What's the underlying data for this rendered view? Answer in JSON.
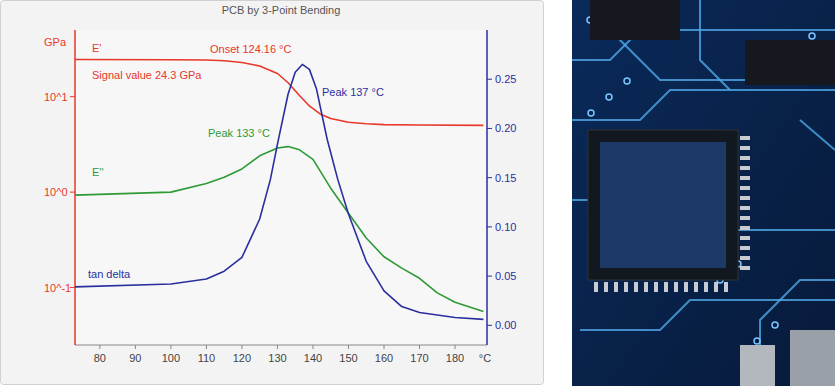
{
  "chart_data": {
    "type": "line",
    "title": "PCB by 3-Point Bending",
    "x_label": "°C",
    "y_label": "GPa",
    "log": "y",
    "grid": false,
    "xlim": [
      73,
      189
    ],
    "xticks": [
      80,
      90,
      100,
      110,
      120,
      130,
      140,
      150,
      160,
      170,
      180
    ],
    "ylim": [
      0.025,
      50
    ],
    "yticks": [
      {
        "value": 0.1,
        "label": "10^-1"
      },
      {
        "value": 1,
        "label": "10^0"
      },
      {
        "value": 10,
        "label": "10^1"
      }
    ],
    "y2lim": [
      -0.02,
      0.3
    ],
    "y2ticks": [
      {
        "value": 0,
        "label": "0.00"
      },
      {
        "value": 0.05,
        "label": "0.05"
      },
      {
        "value": 0.1,
        "label": "0.10"
      },
      {
        "value": 0.15,
        "label": "0.15"
      },
      {
        "value": 0.2,
        "label": "0.20"
      },
      {
        "value": 0.25,
        "label": "0.25"
      }
    ],
    "series": [
      {
        "name": "E'",
        "color": "#e8382a",
        "x": [
          73,
          100,
          110,
          115,
          120,
          125,
          130,
          133,
          136,
          139,
          142,
          145,
          150,
          155,
          160,
          170,
          188
        ],
        "values": [
          24.5,
          24.4,
          24.2,
          23.8,
          22.8,
          21,
          17.5,
          14,
          10.5,
          8,
          6.6,
          5.9,
          5.4,
          5.2,
          5.1,
          5.05,
          5.0
        ]
      },
      {
        "name": "E''",
        "color": "#2e9a36",
        "x": [
          73,
          100,
          110,
          115,
          120,
          125,
          130,
          133,
          136,
          140,
          145,
          150,
          155,
          160,
          165,
          170,
          175,
          180,
          188
        ],
        "values": [
          0.93,
          1.0,
          1.23,
          1.43,
          1.75,
          2.4,
          2.9,
          3.0,
          2.8,
          2.2,
          1.1,
          0.6,
          0.33,
          0.21,
          0.16,
          0.125,
          0.088,
          0.07,
          0.056
        ]
      },
      {
        "name": "tan delta",
        "color": "#2b2f9e",
        "axis": "y2",
        "x": [
          73,
          100,
          110,
          115,
          120,
          125,
          128,
          130,
          133,
          135,
          137,
          139,
          141,
          144,
          147,
          150,
          155,
          160,
          165,
          170,
          180,
          188
        ],
        "values": [
          0.039,
          0.042,
          0.047,
          0.055,
          0.069,
          0.108,
          0.148,
          0.184,
          0.235,
          0.257,
          0.265,
          0.26,
          0.24,
          0.189,
          0.148,
          0.113,
          0.065,
          0.035,
          0.019,
          0.013,
          0.008,
          0.006
        ]
      }
    ],
    "annotations": [
      {
        "text": "Onset 124.16 °C",
        "color": "#e8382a"
      },
      {
        "text": "Signal value 24.3 GPa",
        "color": "#e8382a"
      },
      {
        "text": "Peak 137 °C",
        "color": "#2b2f9e"
      },
      {
        "text": "Peak 133 °C",
        "color": "#2e9a36"
      }
    ]
  }
}
